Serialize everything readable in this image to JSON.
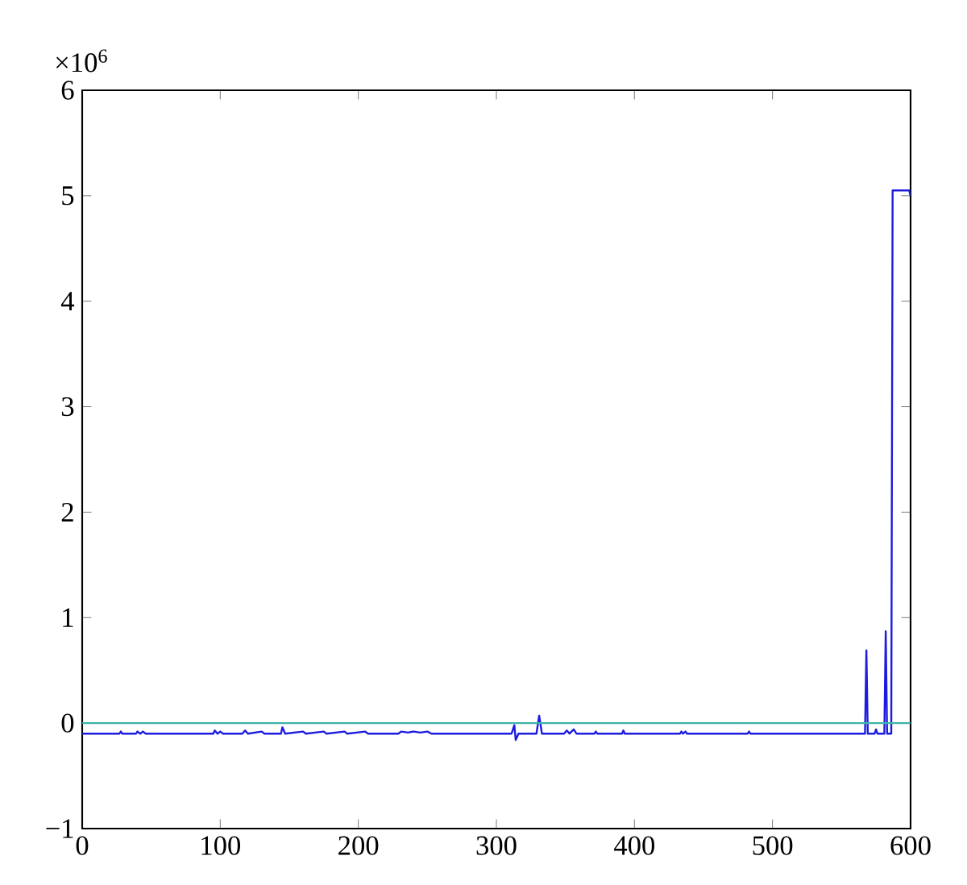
{
  "chart_data": {
    "type": "line",
    "annotations": [
      "×10$^{6}$"
    ],
    "xlim": [
      0,
      600
    ],
    "xticks": [
      0,
      100,
      200,
      300,
      400,
      500,
      600
    ],
    "ylim": [
      -1,
      6
    ],
    "yticks": [
      {
        "value": -1,
        "label": "−1"
      },
      0,
      1,
      2,
      3,
      4,
      5,
      6
    ],
    "grid": false,
    "marker": "none",
    "line_style": "solid",
    "series": [
      {
        "color": "#1c1ce0",
        "x": [
          0,
          27,
          28,
          29,
          39,
          40,
          42,
          44,
          46,
          95,
          96,
          98,
          100,
          102,
          116,
          118,
          120,
          130,
          132,
          144,
          145,
          147,
          160,
          162,
          175,
          177,
          190,
          192,
          205,
          207,
          229,
          231,
          236,
          240,
          245,
          250,
          253,
          311,
          313,
          314,
          316,
          329,
          331,
          333,
          349,
          351,
          353,
          356,
          358,
          371,
          372,
          373,
          391,
          392,
          393,
          433,
          434,
          435,
          437,
          438,
          482,
          483,
          484,
          567,
          568,
          569,
          574,
          575,
          576,
          581,
          582,
          583,
          586,
          587,
          599,
          600
        ],
        "values": [
          -0.1,
          -0.1,
          -0.08,
          -0.1,
          -0.1,
          -0.08,
          -0.1,
          -0.08,
          -0.1,
          -0.1,
          -0.07,
          -0.1,
          -0.08,
          -0.1,
          -0.1,
          -0.07,
          -0.1,
          -0.08,
          -0.1,
          -0.1,
          -0.04,
          -0.1,
          -0.08,
          -0.1,
          -0.08,
          -0.1,
          -0.08,
          -0.1,
          -0.08,
          -0.1,
          -0.1,
          -0.08,
          -0.09,
          -0.08,
          -0.09,
          -0.08,
          -0.1,
          -0.1,
          -0.02,
          -0.16,
          -0.1,
          -0.1,
          0.07,
          -0.1,
          -0.1,
          -0.07,
          -0.1,
          -0.06,
          -0.1,
          -0.1,
          -0.08,
          -0.1,
          -0.1,
          -0.07,
          -0.1,
          -0.1,
          -0.08,
          -0.1,
          -0.08,
          -0.1,
          -0.1,
          -0.08,
          -0.1,
          -0.1,
          0.69,
          -0.1,
          -0.1,
          -0.06,
          -0.1,
          -0.1,
          0.87,
          -0.1,
          -0.1,
          5.05,
          5.05,
          5.0
        ]
      },
      {
        "color": "#3cb4a8",
        "x": [
          0,
          600
        ],
        "values": [
          0,
          0
        ]
      }
    ]
  }
}
